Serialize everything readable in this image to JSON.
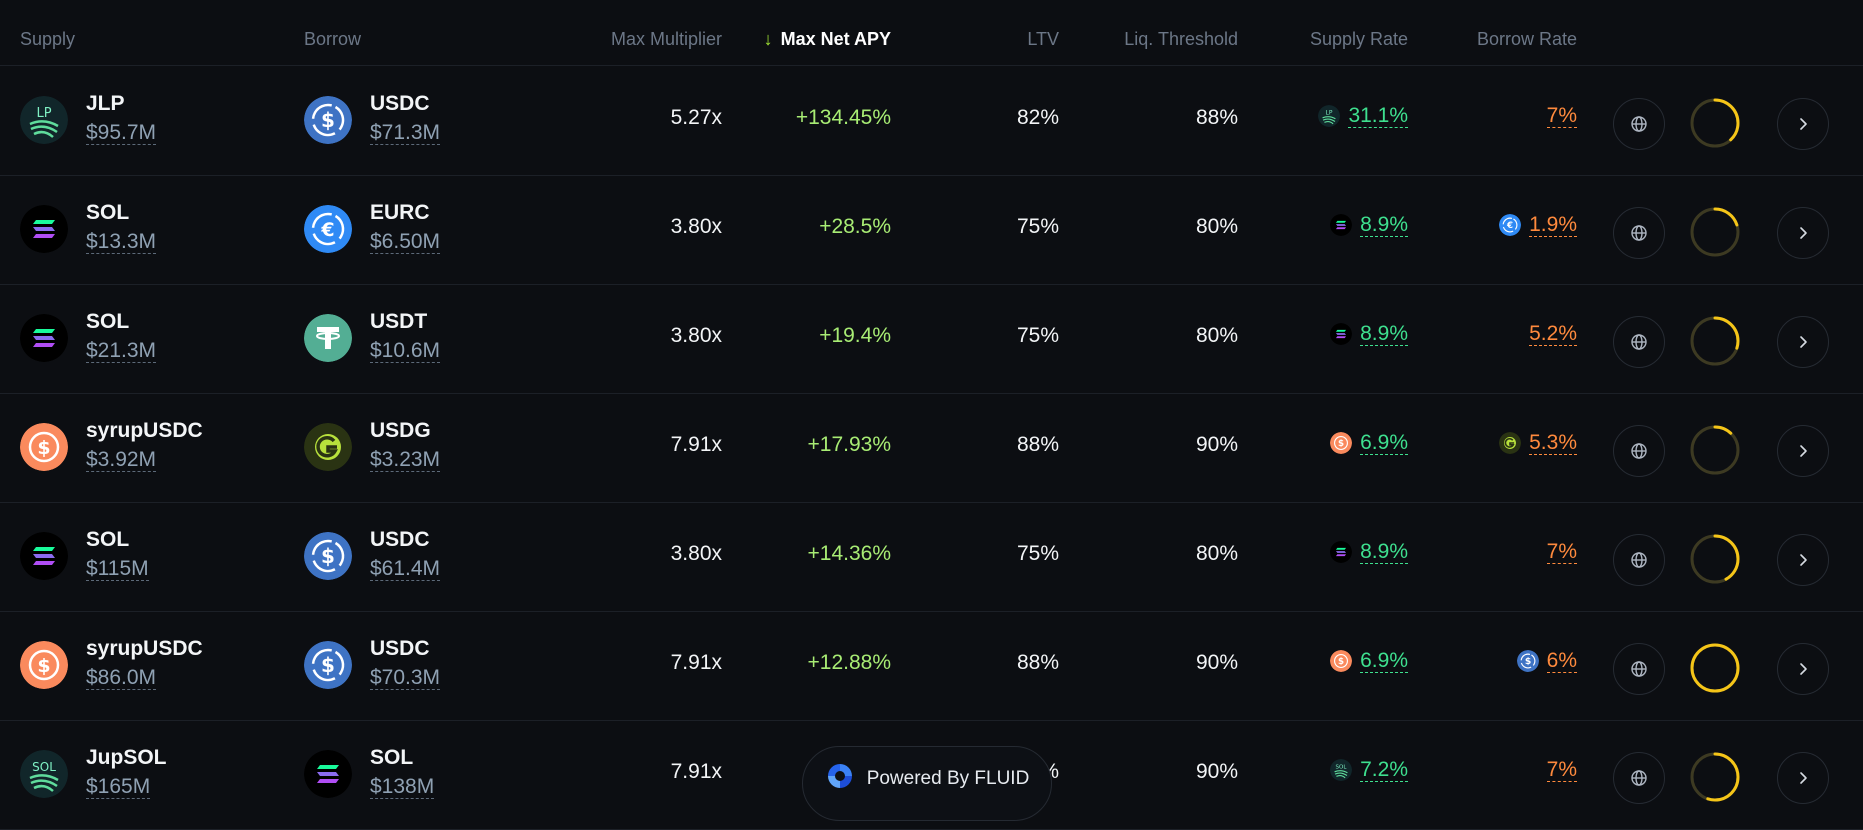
{
  "header": {
    "supply": "Supply",
    "borrow": "Borrow",
    "max_multiplier": "Max Multiplier",
    "max_net_apy": "Max Net APY",
    "ltv": "LTV",
    "liq_threshold": "Liq. Threshold",
    "supply_rate": "Supply Rate",
    "borrow_rate": "Borrow Rate"
  },
  "rows": [
    {
      "supply_symbol": "JLP",
      "supply_amount": "$95.7M",
      "supply_icon": "jlp-icon",
      "borrow_symbol": "USDC",
      "borrow_amount": "$71.3M",
      "borrow_icon": "usdc-icon",
      "multiplier": "5.27x",
      "net_apy": "+134.45%",
      "ltv": "82%",
      "liq_threshold": "88%",
      "supply_rate": "31.1%",
      "borrow_rate": "7%",
      "borrow_rate_icon": "",
      "progress": 0.38
    },
    {
      "supply_symbol": "SOL",
      "supply_amount": "$13.3M",
      "supply_icon": "sol-icon",
      "borrow_symbol": "EURC",
      "borrow_amount": "$6.50M",
      "borrow_icon": "eurc-icon",
      "multiplier": "3.80x",
      "net_apy": "+28.5%",
      "ltv": "75%",
      "liq_threshold": "80%",
      "supply_rate": "8.9%",
      "borrow_rate": "1.9%",
      "borrow_rate_icon": "eurc-icon",
      "progress": 0.2
    },
    {
      "supply_symbol": "SOL",
      "supply_amount": "$21.3M",
      "supply_icon": "sol-icon",
      "borrow_symbol": "USDT",
      "borrow_amount": "$10.6M",
      "borrow_icon": "usdt-icon",
      "multiplier": "3.80x",
      "net_apy": "+19.4%",
      "ltv": "75%",
      "liq_threshold": "80%",
      "supply_rate": "8.9%",
      "borrow_rate": "5.2%",
      "borrow_rate_icon": "",
      "progress": 0.3
    },
    {
      "supply_symbol": "syrupUSDC",
      "supply_amount": "$3.92M",
      "supply_icon": "syrupusdc-icon",
      "borrow_symbol": "USDG",
      "borrow_amount": "$3.23M",
      "borrow_icon": "usdg-icon",
      "multiplier": "7.91x",
      "net_apy": "+17.93%",
      "ltv": "88%",
      "liq_threshold": "90%",
      "supply_rate": "6.9%",
      "borrow_rate": "5.3%",
      "borrow_rate_icon": "usdg-icon",
      "progress": 0.12
    },
    {
      "supply_symbol": "SOL",
      "supply_amount": "$115M",
      "supply_icon": "sol-icon",
      "borrow_symbol": "USDC",
      "borrow_amount": "$61.4M",
      "borrow_icon": "usdc-icon",
      "multiplier": "3.80x",
      "net_apy": "+14.36%",
      "ltv": "75%",
      "liq_threshold": "80%",
      "supply_rate": "8.9%",
      "borrow_rate": "7%",
      "borrow_rate_icon": "",
      "progress": 0.42
    },
    {
      "supply_symbol": "syrupUSDC",
      "supply_amount": "$86.0M",
      "supply_icon": "syrupusdc-icon",
      "borrow_symbol": "USDC",
      "borrow_amount": "$70.3M",
      "borrow_icon": "usdc-icon",
      "multiplier": "7.91x",
      "net_apy": "+12.88%",
      "ltv": "88%",
      "liq_threshold": "90%",
      "supply_rate": "6.9%",
      "borrow_rate": "6%",
      "borrow_rate_icon": "usdc-icon",
      "progress": 1.0
    },
    {
      "supply_symbol": "JupSOL",
      "supply_amount": "$165M",
      "supply_icon": "jupsol-icon",
      "borrow_symbol": "SOL",
      "borrow_amount": "$138M",
      "borrow_icon": "sol-icon",
      "multiplier": "7.91x",
      "net_apy": "",
      "ltv": "%",
      "liq_threshold": "90%",
      "supply_rate": "7.2%",
      "borrow_rate": "7%",
      "borrow_rate_icon": "",
      "progress": 0.55
    }
  ],
  "powered_by": "Powered By FLUID",
  "colors": {
    "accent_yellow": "#f5c518",
    "apy_green": "#a8ec74",
    "supply_rate_green": "#3ee08f",
    "borrow_rate_orange": "#ff8a3d"
  }
}
